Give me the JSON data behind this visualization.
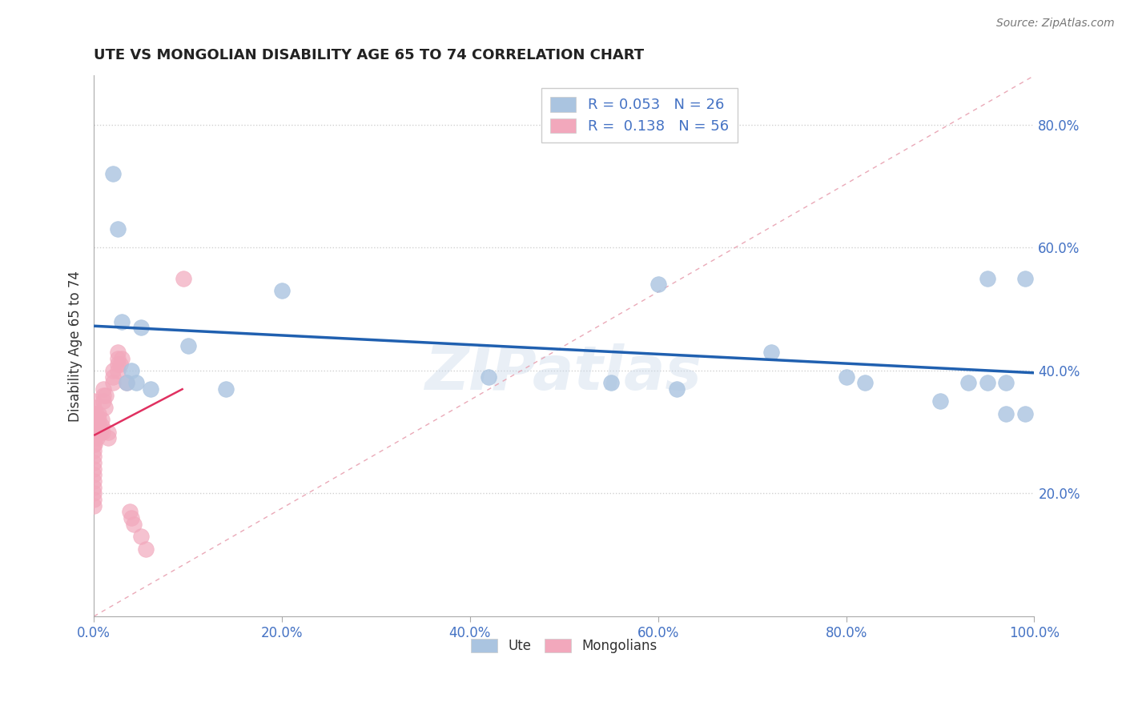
{
  "title": "UTE VS MONGOLIAN DISABILITY AGE 65 TO 74 CORRELATION CHART",
  "source": "Source: ZipAtlas.com",
  "ylabel": "Disability Age 65 to 74",
  "xlim": [
    0.0,
    1.0
  ],
  "ylim": [
    0.0,
    0.88
  ],
  "xticks": [
    0.0,
    0.2,
    0.4,
    0.6,
    0.8,
    1.0
  ],
  "xtick_labels": [
    "0.0%",
    "20.0%",
    "40.0%",
    "60.0%",
    "80.0%",
    "100.0%"
  ],
  "yticks": [
    0.2,
    0.4,
    0.6,
    0.8
  ],
  "ytick_labels": [
    "20.0%",
    "40.0%",
    "60.0%",
    "80.0%"
  ],
  "ute_x": [
    0.02,
    0.025,
    0.03,
    0.035,
    0.04,
    0.045,
    0.05,
    0.06,
    0.1,
    0.14,
    0.2,
    0.42,
    0.55,
    0.6,
    0.62,
    0.72,
    0.8,
    0.82,
    0.9,
    0.93,
    0.95,
    0.95,
    0.97,
    0.97,
    0.99,
    0.99
  ],
  "ute_y": [
    0.72,
    0.63,
    0.48,
    0.38,
    0.4,
    0.38,
    0.47,
    0.37,
    0.44,
    0.37,
    0.53,
    0.39,
    0.38,
    0.54,
    0.37,
    0.43,
    0.39,
    0.38,
    0.35,
    0.38,
    0.55,
    0.38,
    0.33,
    0.38,
    0.55,
    0.33
  ],
  "mongolian_x": [
    0.0,
    0.0,
    0.0,
    0.0,
    0.0,
    0.0,
    0.0,
    0.0,
    0.0,
    0.0,
    0.0,
    0.0,
    0.0,
    0.0,
    0.0,
    0.0,
    0.001,
    0.001,
    0.001,
    0.001,
    0.002,
    0.002,
    0.002,
    0.003,
    0.003,
    0.004,
    0.005,
    0.005,
    0.006,
    0.007,
    0.008,
    0.008,
    0.009,
    0.01,
    0.01,
    0.01,
    0.012,
    0.013,
    0.015,
    0.015,
    0.02,
    0.02,
    0.02,
    0.025,
    0.025,
    0.025,
    0.025,
    0.028,
    0.03,
    0.035,
    0.038,
    0.04,
    0.042,
    0.05,
    0.055,
    0.095
  ],
  "mongolian_y": [
    0.33,
    0.34,
    0.35,
    0.31,
    0.3,
    0.28,
    0.27,
    0.26,
    0.25,
    0.24,
    0.23,
    0.22,
    0.21,
    0.2,
    0.19,
    0.18,
    0.31,
    0.3,
    0.29,
    0.28,
    0.33,
    0.32,
    0.31,
    0.3,
    0.29,
    0.31,
    0.33,
    0.32,
    0.31,
    0.3,
    0.32,
    0.31,
    0.3,
    0.37,
    0.36,
    0.35,
    0.34,
    0.36,
    0.3,
    0.29,
    0.4,
    0.39,
    0.38,
    0.43,
    0.42,
    0.41,
    0.4,
    0.41,
    0.42,
    0.38,
    0.17,
    0.16,
    0.15,
    0.13,
    0.11,
    0.55
  ],
  "ute_R": 0.053,
  "ute_N": 26,
  "mongolian_R": 0.138,
  "mongolian_N": 56,
  "ute_color": "#aac4e0",
  "mongolian_color": "#f2a8bc",
  "ute_line_color": "#2060b0",
  "mongolian_line_color": "#e03060",
  "ref_line_color": "#e8a0b0",
  "background_color": "#ffffff",
  "grid_color": "#cccccc",
  "axis_color": "#4472c4",
  "watermark": "ZIPatlas"
}
